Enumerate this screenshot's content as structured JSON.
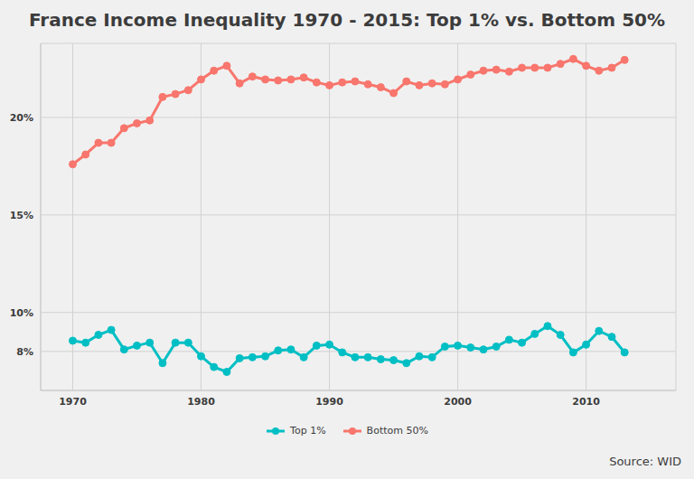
{
  "chart_data": {
    "type": "line",
    "title": "France Income Inequality 1970 - 2015: Top 1% vs. Bottom 50%",
    "caption": "Source: WID",
    "x": [
      1970,
      1971,
      1972,
      1973,
      1974,
      1975,
      1976,
      1977,
      1978,
      1979,
      1980,
      1981,
      1982,
      1983,
      1984,
      1985,
      1986,
      1987,
      1988,
      1989,
      1990,
      1991,
      1992,
      1993,
      1994,
      1995,
      1996,
      1997,
      1998,
      1999,
      2000,
      2001,
      2002,
      2003,
      2004,
      2005,
      2006,
      2007,
      2008,
      2009,
      2010,
      2011,
      2012,
      2013
    ],
    "series": [
      {
        "name": "Top 1%",
        "color": "#00bfc4",
        "values": [
          8.55,
          8.45,
          8.85,
          9.1,
          8.1,
          8.3,
          8.45,
          7.4,
          8.45,
          8.45,
          7.75,
          7.2,
          6.95,
          7.65,
          7.7,
          7.75,
          8.05,
          8.1,
          7.7,
          8.3,
          8.35,
          7.95,
          7.7,
          7.7,
          7.6,
          7.55,
          7.4,
          7.75,
          7.7,
          8.25,
          8.3,
          8.2,
          8.1,
          8.25,
          8.6,
          8.45,
          8.9,
          9.3,
          8.85,
          7.95,
          8.35,
          9.05,
          8.75,
          7.95
        ]
      },
      {
        "name": "Bottom 50%",
        "color": "#f8766d",
        "values": [
          17.6,
          18.1,
          18.7,
          18.7,
          19.45,
          19.7,
          19.85,
          21.05,
          21.2,
          21.4,
          21.95,
          22.4,
          22.65,
          21.75,
          22.1,
          21.95,
          21.9,
          21.95,
          22.05,
          21.8,
          21.65,
          21.8,
          21.85,
          21.7,
          21.55,
          21.25,
          21.85,
          21.65,
          21.75,
          21.7,
          21.95,
          22.2,
          22.4,
          22.45,
          22.35,
          22.55,
          22.55,
          22.55,
          22.75,
          23.0,
          22.65,
          22.4,
          22.55,
          22.95
        ]
      }
    ],
    "xlim": [
      1967.5,
      2017
    ],
    "xticks": [
      1970,
      1980,
      1990,
      2000,
      2010
    ],
    "ylim": [
      6,
      23.8
    ],
    "yticks": [
      {
        "value": 8,
        "label": "8%"
      },
      {
        "value": 10,
        "label": "10%"
      },
      {
        "value": 15,
        "label": "15%"
      },
      {
        "value": 20,
        "label": "20%"
      }
    ],
    "grid": true,
    "legend": "bottom",
    "marker": "circle"
  }
}
